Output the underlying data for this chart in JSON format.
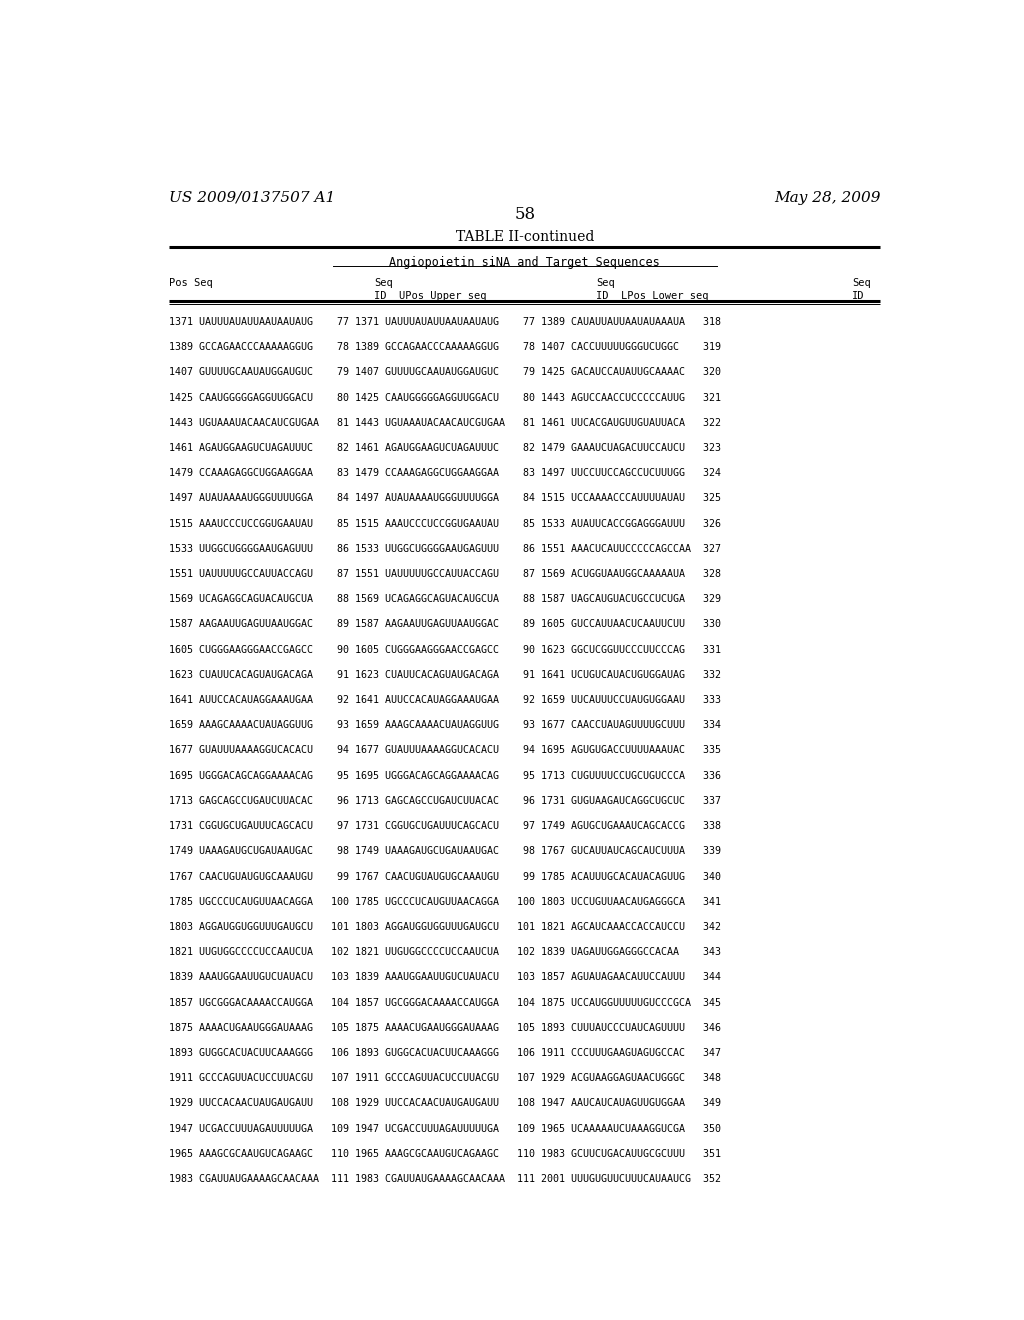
{
  "header_left": "US 2009/0137507 A1",
  "header_right": "May 28, 2009",
  "page_number": "58",
  "table_title": "TABLE II-continued",
  "subtitle": "Angiopoietin siNA and Target Sequences",
  "background": "#ffffff",
  "text_color": "#000000",
  "row_data": [
    [
      "1371",
      "UAUUUAUAUUAAUAAUAUG",
      "77",
      "1371",
      "UAUUUAUAUUAAUAAUAUG",
      "77",
      "1389",
      "CAUAUUAUUAAUAUAAAUA",
      "318"
    ],
    [
      "1389",
      "GCCAGAACCCAAAAAGGUG",
      "78",
      "1389",
      "GCCAGAACCCAAAAAGGUG",
      "78",
      "1407",
      "CACCUUUUUGGGUCUGGC",
      "319"
    ],
    [
      "1407",
      "GUUUUGCAAUAUGGAUGUC",
      "79",
      "1407",
      "GUUUUGCAAUAUGGAUGUC",
      "79",
      "1425",
      "GACAUCCAUAUUGCAAAAC",
      "320"
    ],
    [
      "1425",
      "CAAUGGGGGAGGUUGGACU",
      "80",
      "1425",
      "CAAUGGGGGAGGUUGGACU",
      "80",
      "1443",
      "AGUCCAACCUCCCCCAUUG",
      "321"
    ],
    [
      "1443",
      "UGUAAAUACAACAUCGUGAA",
      "81",
      "1443",
      "UGUAAAUACAACAUCGUGAA",
      "81",
      "1461",
      "UUCACGAUGUUGUAUUACA",
      "322"
    ],
    [
      "1461",
      "AGAUGGAAGUCUAGAUUUC",
      "82",
      "1461",
      "AGAUGGAAGUCUAGAUUUC",
      "82",
      "1479",
      "GAAAUCUAGACUUCCAUCU",
      "323"
    ],
    [
      "1479",
      "CCAAAGAGGCUGGAAGGAA",
      "83",
      "1479",
      "CCAAAGAGGCUGGAAGGAA",
      "83",
      "1497",
      "UUCCUUCCAGCCUCUUUGG",
      "324"
    ],
    [
      "1497",
      "AUAUAAAAUGGGUUUUGGA",
      "84",
      "1497",
      "AUAUAAAAUGGGUUUUGGA",
      "84",
      "1515",
      "UCCAAAACCCAUUUUAUAU",
      "325"
    ],
    [
      "1515",
      "AAAUCCCUCCGGUGAAUAU",
      "85",
      "1515",
      "AAAUCCCUCCGGUGAAUAU",
      "85",
      "1533",
      "AUAUUCACCGGAGGGAUUU",
      "326"
    ],
    [
      "1533",
      "UUGGCUGGGGAAUGAGUUU",
      "86",
      "1533",
      "UUGGCUGGGGAAUGAGUUU",
      "86",
      "1551",
      "AAACUCAUUCCCCCAGCCAA",
      "327"
    ],
    [
      "1551",
      "UAUUUUUGCCAUUACCAGU",
      "87",
      "1551",
      "UAUUUUUGCCAUUACCAGU",
      "87",
      "1569",
      "ACUGGUAAUGGCAAAAAUA",
      "328"
    ],
    [
      "1569",
      "UCAGAGGCAGUACAUGCUA",
      "88",
      "1569",
      "UCAGAGGCAGUACAUGCUA",
      "88",
      "1587",
      "UAGCAUGUACUGCCUCUGA",
      "329"
    ],
    [
      "1587",
      "AAGAAUUGAGUUAAUGGAC",
      "89",
      "1587",
      "AAGAAUUGAGUUAAUGGAC",
      "89",
      "1605",
      "GUCCAUUAACUCAAUUCUU",
      "330"
    ],
    [
      "1605",
      "CUGGGAAGGGAACCGAGCC",
      "90",
      "1605",
      "CUGGGAAGGGAACCGAGCC",
      "90",
      "1623",
      "GGCUCGGUUCCCUUCCCAG",
      "331"
    ],
    [
      "1623",
      "CUAUUCACAGUAUGACAGA",
      "91",
      "1623",
      "CUAUUCACAGUAUGACAGA",
      "91",
      "1641",
      "UCUGUCAUACUGUGGAUAG",
      "332"
    ],
    [
      "1641",
      "AUUCCACAUAGGAAAUGAA",
      "92",
      "1641",
      "AUUCCACAUAGGAAAUGAA",
      "92",
      "1659",
      "UUCAUUUCCUAUGUGGAAU",
      "333"
    ],
    [
      "1659",
      "AAAGCAAAACUAUAGGUUG",
      "93",
      "1659",
      "AAAGCAAAACUAUAGGUUG",
      "93",
      "1677",
      "CAACCUAUAGUUUUGCUUU",
      "334"
    ],
    [
      "1677",
      "GUAUUUAAAAGGUCACACU",
      "94",
      "1677",
      "GUAUUUAAAAGGUCACACU",
      "94",
      "1695",
      "AGUGUGACCUUUUAAAUAC",
      "335"
    ],
    [
      "1695",
      "UGGGACAGCAGGAAAACAG",
      "95",
      "1695",
      "UGGGACAGCAGGAAAACAG",
      "95",
      "1713",
      "CUGUUUUCCUGCUGUCCCA",
      "336"
    ],
    [
      "1713",
      "GAGCAGCCUGAUCUUACAC",
      "96",
      "1713",
      "GAGCAGCCUGAUCUUACAC",
      "96",
      "1731",
      "GUGUAAGAUCAGGCUGCUC",
      "337"
    ],
    [
      "1731",
      "CGGUGCUGAUUUCAGCACU",
      "97",
      "1731",
      "CGGUGCUGAUUUCAGCACU",
      "97",
      "1749",
      "AGUGCUGAAAUCAGCACCG",
      "338"
    ],
    [
      "1749",
      "UAAAGAUGCUGAUAAUGAC",
      "98",
      "1749",
      "UAAAGAUGCUGAUAAUGAC",
      "98",
      "1767",
      "GUCAUUAUCAGCAUCUUUA",
      "339"
    ],
    [
      "1767",
      "CAACUGUAUGUGCAAAUGU",
      "99",
      "1767",
      "CAACUGUAUGUGCAAAUGU",
      "99",
      "1785",
      "ACAUUUGCACAUACAGUUG",
      "340"
    ],
    [
      "1785",
      "UGCCCUCAUGUUAACAGGA",
      "100",
      "1785",
      "UGCCCUCAUGUUAACAGGA",
      "100",
      "1803",
      "UCCUGUUAACAUGAGGGCA",
      "341"
    ],
    [
      "1803",
      "AGGAUGGUGGUUUGAUGCU",
      "101",
      "1803",
      "AGGAUGGUGGUUUGAUGCU",
      "101",
      "1821",
      "AGCAUCAAACCACCAUCCU",
      "342"
    ],
    [
      "1821",
      "UUGUGGCCCCUCCAAUCUA",
      "102",
      "1821",
      "UUGUGGCCCCUCCAAUCUA",
      "102",
      "1839",
      "UAGAUUGGAGGGCCACAA",
      "343"
    ],
    [
      "1839",
      "AAAUGGAAUUGUCUAUACU",
      "103",
      "1839",
      "AAAUGGAAUUGUCUAUACU",
      "103",
      "1857",
      "AGUAUAGAACAUUCCAUUU",
      "344"
    ],
    [
      "1857",
      "UGCGGGACAAAACCAUGGA",
      "104",
      "1857",
      "UGCGGGACAAAACCAUGGA",
      "104",
      "1875",
      "UCCAUGGUUUUUGUCCCGCA",
      "345"
    ],
    [
      "1875",
      "AAAACUGAAUGGGAUAAAG",
      "105",
      "1875",
      "AAAACUGAAUGGGAUAAAG",
      "105",
      "1893",
      "CUUUAUCCCUAUCAGUUUU",
      "346"
    ],
    [
      "1893",
      "GUGGCACUACUUCAAAGGG",
      "106",
      "1893",
      "GUGGCACUACUUCAAAGGG",
      "106",
      "1911",
      "CCCUUUGAAGUAGUGCCAC",
      "347"
    ],
    [
      "1911",
      "GCCCAGUUACUCCUUACGU",
      "107",
      "1911",
      "GCCCAGUUACUCCUUACGU",
      "107",
      "1929",
      "ACGUAAGGAGUAACUGGGC",
      "348"
    ],
    [
      "1929",
      "UUCCACAACUAUGAUGAUU",
      "108",
      "1929",
      "UUCCACAACUAUGAUGAUU",
      "108",
      "1947",
      "AAUCAUCAUAGUUGUGGAA",
      "349"
    ],
    [
      "1947",
      "UCGACCUUUAGAUUUUUGA",
      "109",
      "1947",
      "UCGACCUUUAGAUUUUUGA",
      "109",
      "1965",
      "UCAAAAAUCUAAAGGUCGA",
      "350"
    ],
    [
      "1965",
      "AAAGCGCAAUGUCAGAAGC",
      "110",
      "1965",
      "AAAGCGCAAUGUCAGAAGC",
      "110",
      "1983",
      "GCUUCUGACAUUGCGCUUU",
      "351"
    ],
    [
      "1983",
      "CGAUUAUGAAAAGCAACAAA",
      "111",
      "1983",
      "CGAUUAUGAAAAGCAACAAA",
      "111",
      "2001",
      "UUUGUGUUCUUUCAUAAUCG",
      "352"
    ]
  ]
}
